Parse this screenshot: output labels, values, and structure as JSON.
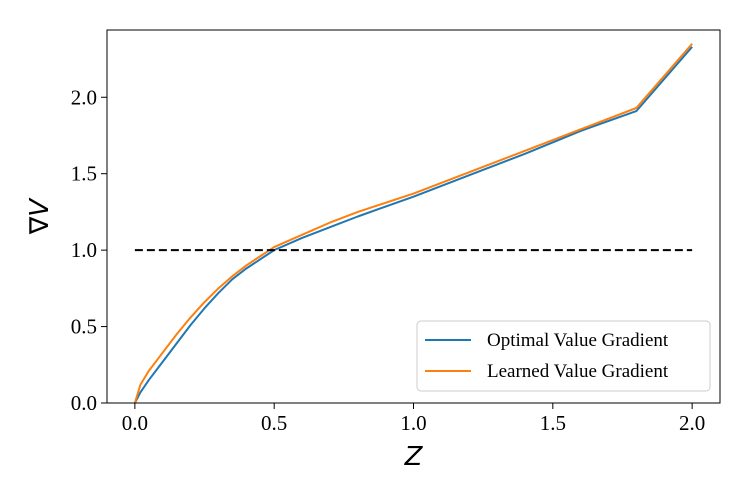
{
  "chart_data": {
    "type": "line",
    "title": "",
    "xlabel": "Z",
    "ylabel": "∇V",
    "xlim": [
      -0.1,
      2.1
    ],
    "ylim": [
      0.0,
      2.44
    ],
    "xticks": [
      0.0,
      0.5,
      1.0,
      1.5,
      2.0
    ],
    "xtick_labels": [
      "0.0",
      "0.5",
      "1.0",
      "1.5",
      "2.0"
    ],
    "yticks": [
      0.0,
      0.5,
      1.0,
      1.5,
      2.0
    ],
    "ytick_labels": [
      "0.0",
      "0.5",
      "1.0",
      "1.5",
      "2.0"
    ],
    "grid": false,
    "legend_position": "lower-right",
    "series": [
      {
        "name": "Optimal Value Gradient",
        "color": "#1f77b4",
        "style": "solid",
        "x": [
          0.0,
          0.02,
          0.05,
          0.1,
          0.15,
          0.2,
          0.25,
          0.3,
          0.35,
          0.4,
          0.45,
          0.5,
          0.6,
          0.7,
          0.8,
          1.0,
          1.2,
          1.4,
          1.6,
          1.8,
          2.0
        ],
        "y": [
          0.0,
          0.07,
          0.15,
          0.27,
          0.39,
          0.51,
          0.62,
          0.72,
          0.81,
          0.88,
          0.94,
          1.0,
          1.08,
          1.15,
          1.22,
          1.35,
          1.49,
          1.63,
          1.78,
          1.91,
          2.33
        ]
      },
      {
        "name": "Learned Value Gradient",
        "color": "#ff7f0e",
        "style": "solid",
        "x": [
          0.0,
          0.02,
          0.05,
          0.1,
          0.15,
          0.2,
          0.25,
          0.3,
          0.35,
          0.4,
          0.45,
          0.5,
          0.6,
          0.7,
          0.8,
          1.0,
          1.2,
          1.4,
          1.6,
          1.8,
          2.0
        ],
        "y": [
          0.0,
          0.12,
          0.21,
          0.33,
          0.45,
          0.56,
          0.66,
          0.75,
          0.83,
          0.9,
          0.96,
          1.02,
          1.1,
          1.18,
          1.25,
          1.37,
          1.51,
          1.65,
          1.79,
          1.93,
          2.35
        ]
      },
      {
        "color": "#000000",
        "style": "dashed",
        "x": [
          0.0,
          2.0
        ],
        "y": [
          1.0,
          1.0
        ]
      }
    ]
  }
}
